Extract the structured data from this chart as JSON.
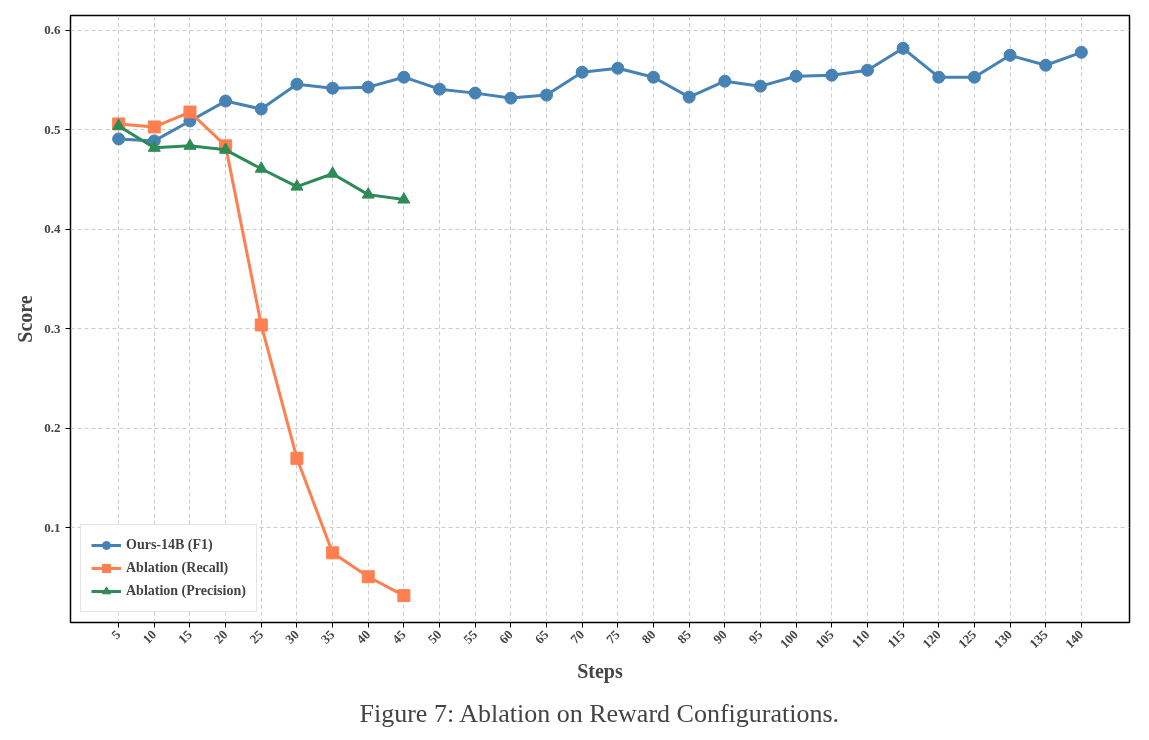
{
  "chart_data": {
    "type": "line",
    "xlabel": "Steps",
    "ylabel": "Score",
    "annotations": [
      "Figure 7: Ablation on Reward Configurations."
    ],
    "xlim": [
      -1.75,
      146.75
    ],
    "xticks": [
      5,
      10,
      15,
      20,
      25,
      30,
      35,
      40,
      45,
      50,
      55,
      60,
      65,
      70,
      75,
      80,
      85,
      90,
      95,
      100,
      105,
      110,
      115,
      120,
      125,
      130,
      135,
      140
    ],
    "ylim": [
      0.005,
      0.615
    ],
    "yticks": [
      0.1,
      0.2,
      0.3,
      0.4,
      0.5,
      0.6
    ],
    "grid": true,
    "legend": "bottom left",
    "line_style": "solid",
    "series": [
      {
        "name": "Ours-14B (F1)",
        "color": "#4682b4",
        "marker": "circle",
        "x": [
          5,
          10,
          15,
          20,
          25,
          30,
          35,
          40,
          45,
          50,
          55,
          60,
          65,
          70,
          75,
          80,
          85,
          90,
          95,
          100,
          105,
          110,
          115,
          120,
          125,
          130,
          135,
          140
        ],
        "values": [
          0.491,
          0.489,
          0.509,
          0.529,
          0.521,
          0.546,
          0.542,
          0.543,
          0.553,
          0.541,
          0.537,
          0.532,
          0.535,
          0.558,
          0.562,
          0.553,
          0.533,
          0.549,
          0.544,
          0.554,
          0.555,
          0.56,
          0.582,
          0.553,
          0.553,
          0.575,
          0.565,
          0.578
        ]
      },
      {
        "name": "Ablation (Recall)",
        "color": "#ff7f50",
        "marker": "square",
        "x": [
          5,
          10,
          15,
          20,
          25,
          30,
          35,
          40,
          45
        ],
        "values": [
          0.506,
          0.503,
          0.518,
          0.484,
          0.304,
          0.17,
          0.075,
          0.051,
          0.032
        ]
      },
      {
        "name": "Ablation (Precision)",
        "color": "#2e8b57",
        "marker": "triangle",
        "x": [
          5,
          10,
          15,
          20,
          25,
          30,
          35,
          40,
          45
        ],
        "values": [
          0.504,
          0.482,
          0.484,
          0.48,
          0.461,
          0.443,
          0.456,
          0.435,
          0.43
        ]
      }
    ]
  }
}
